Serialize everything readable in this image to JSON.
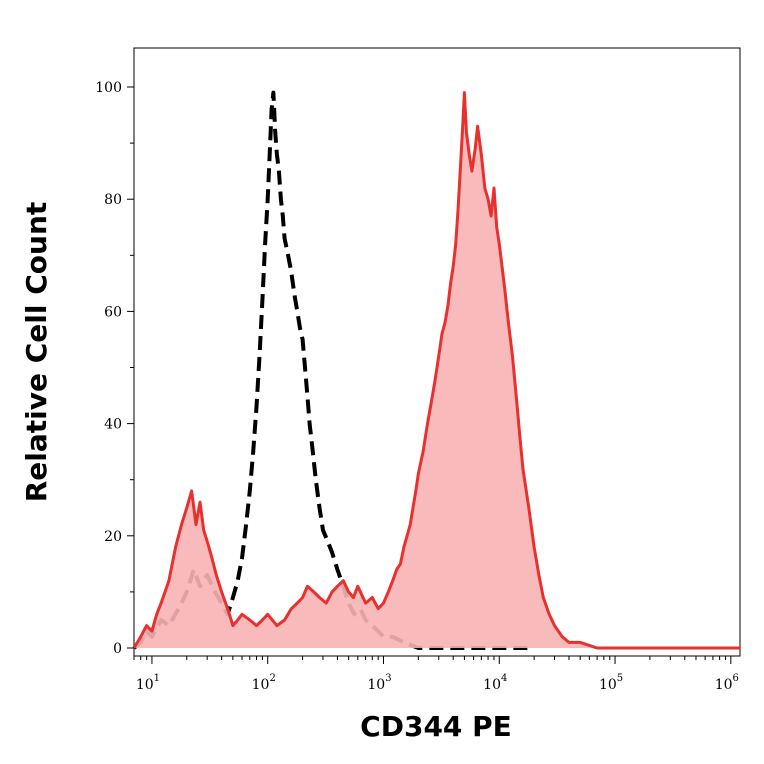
{
  "chart_data": {
    "type": "area",
    "xlabel": "CD344 PE",
    "ylabel": "Relative Cell Count",
    "x_scale": "log",
    "xlim": [
      7,
      1200000
    ],
    "ylim": [
      0,
      103
    ],
    "y_ticks": [
      {
        "value": 0,
        "label": "0"
      },
      {
        "value": 20,
        "label": "20"
      },
      {
        "value": 40,
        "label": "40"
      },
      {
        "value": 60,
        "label": "60"
      },
      {
        "value": 80,
        "label": "80"
      },
      {
        "value": 100,
        "label": "100"
      }
    ],
    "x_ticks": [
      {
        "value": 10,
        "base": "10",
        "exp": "1"
      },
      {
        "value": 100,
        "base": "10",
        "exp": "2"
      },
      {
        "value": 1000,
        "base": "10",
        "exp": "3"
      },
      {
        "value": 10000,
        "base": "10",
        "exp": "4"
      },
      {
        "value": 100000,
        "base": "10",
        "exp": "5"
      },
      {
        "value": 1000000,
        "base": "10",
        "exp": "6"
      }
    ],
    "grid": false,
    "legend": "none",
    "series": [
      {
        "style": "dashed",
        "color": "#000000",
        "fill": "none",
        "points": [
          [
            7,
            0
          ],
          [
            8,
            1
          ],
          [
            9,
            3
          ],
          [
            10,
            2
          ],
          [
            12,
            5
          ],
          [
            14,
            4
          ],
          [
            17,
            7
          ],
          [
            20,
            10
          ],
          [
            23,
            14
          ],
          [
            26,
            11
          ],
          [
            30,
            13
          ],
          [
            35,
            10
          ],
          [
            40,
            8
          ],
          [
            45,
            6
          ],
          [
            50,
            9
          ],
          [
            55,
            12
          ],
          [
            60,
            16
          ],
          [
            65,
            22
          ],
          [
            70,
            28
          ],
          [
            75,
            35
          ],
          [
            80,
            43
          ],
          [
            85,
            52
          ],
          [
            90,
            62
          ],
          [
            95,
            72
          ],
          [
            100,
            80
          ],
          [
            104,
            88
          ],
          [
            108,
            96
          ],
          [
            112,
            99
          ],
          [
            116,
            92
          ],
          [
            120,
            88
          ],
          [
            125,
            85
          ],
          [
            130,
            80
          ],
          [
            135,
            77
          ],
          [
            140,
            73
          ],
          [
            150,
            70
          ],
          [
            160,
            67
          ],
          [
            170,
            63
          ],
          [
            180,
            60
          ],
          [
            190,
            57
          ],
          [
            200,
            55
          ],
          [
            210,
            50
          ],
          [
            220,
            45
          ],
          [
            230,
            40
          ],
          [
            245,
            35
          ],
          [
            260,
            30
          ],
          [
            280,
            25
          ],
          [
            300,
            21
          ],
          [
            330,
            19
          ],
          [
            360,
            17
          ],
          [
            400,
            14
          ],
          [
            450,
            11
          ],
          [
            500,
            8
          ],
          [
            560,
            6
          ],
          [
            630,
            7
          ],
          [
            700,
            5
          ],
          [
            800,
            4
          ],
          [
            900,
            3
          ],
          [
            1000,
            2
          ],
          [
            1200,
            2
          ],
          [
            1500,
            1
          ],
          [
            2000,
            0
          ],
          [
            3000,
            0
          ],
          [
            5000,
            0
          ],
          [
            10000,
            0
          ],
          [
            20000,
            0
          ]
        ]
      },
      {
        "style": "solid",
        "color": "#e8312f",
        "fill": "#f7b2b2",
        "points": [
          [
            7,
            0
          ],
          [
            8,
            2
          ],
          [
            9,
            4
          ],
          [
            10,
            3
          ],
          [
            11,
            6
          ],
          [
            12,
            8
          ],
          [
            14,
            12
          ],
          [
            16,
            18
          ],
          [
            18,
            22
          ],
          [
            20,
            25
          ],
          [
            22,
            28
          ],
          [
            24,
            22
          ],
          [
            26,
            26
          ],
          [
            28,
            21
          ],
          [
            30,
            19
          ],
          [
            33,
            16
          ],
          [
            36,
            13
          ],
          [
            40,
            10
          ],
          [
            45,
            7
          ],
          [
            50,
            4
          ],
          [
            55,
            5
          ],
          [
            60,
            6
          ],
          [
            70,
            5
          ],
          [
            80,
            4
          ],
          [
            90,
            5
          ],
          [
            100,
            6
          ],
          [
            120,
            4
          ],
          [
            140,
            5
          ],
          [
            160,
            7
          ],
          [
            180,
            8
          ],
          [
            200,
            9
          ],
          [
            220,
            11
          ],
          [
            250,
            10
          ],
          [
            280,
            9
          ],
          [
            320,
            8
          ],
          [
            360,
            10
          ],
          [
            400,
            11
          ],
          [
            450,
            12
          ],
          [
            500,
            10
          ],
          [
            550,
            9
          ],
          [
            600,
            11
          ],
          [
            700,
            8
          ],
          [
            800,
            9
          ],
          [
            900,
            7
          ],
          [
            1000,
            8
          ],
          [
            1100,
            10
          ],
          [
            1200,
            12
          ],
          [
            1300,
            14
          ],
          [
            1400,
            15
          ],
          [
            1500,
            18
          ],
          [
            1600,
            20
          ],
          [
            1700,
            22
          ],
          [
            1800,
            25
          ],
          [
            1900,
            28
          ],
          [
            2000,
            31
          ],
          [
            2200,
            35
          ],
          [
            2400,
            40
          ],
          [
            2600,
            44
          ],
          [
            2800,
            48
          ],
          [
            3000,
            52
          ],
          [
            3200,
            56
          ],
          [
            3400,
            58
          ],
          [
            3600,
            61
          ],
          [
            3800,
            65
          ],
          [
            4000,
            68
          ],
          [
            4200,
            72
          ],
          [
            4400,
            78
          ],
          [
            4600,
            85
          ],
          [
            4800,
            92
          ],
          [
            5000,
            99
          ],
          [
            5200,
            92
          ],
          [
            5500,
            88
          ],
          [
            5800,
            85
          ],
          [
            6200,
            89
          ],
          [
            6500,
            93
          ],
          [
            7000,
            88
          ],
          [
            7500,
            82
          ],
          [
            8000,
            80
          ],
          [
            8500,
            77
          ],
          [
            9000,
            82
          ],
          [
            9500,
            75
          ],
          [
            10000,
            72
          ],
          [
            11000,
            65
          ],
          [
            12000,
            58
          ],
          [
            13000,
            52
          ],
          [
            14000,
            45
          ],
          [
            15000,
            38
          ],
          [
            16000,
            32
          ],
          [
            18000,
            25
          ],
          [
            20000,
            18
          ],
          [
            22000,
            13
          ],
          [
            24000,
            9
          ],
          [
            27000,
            6
          ],
          [
            30000,
            4
          ],
          [
            35000,
            2
          ],
          [
            40000,
            1
          ],
          [
            50000,
            1
          ],
          [
            70000,
            0
          ],
          [
            100000,
            0
          ],
          [
            300000,
            0
          ],
          [
            1200000,
            0
          ]
        ]
      }
    ]
  }
}
